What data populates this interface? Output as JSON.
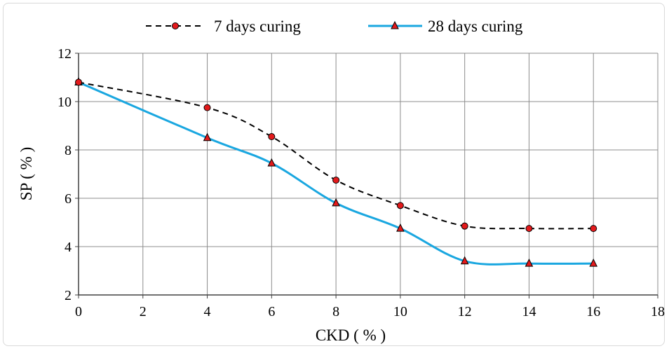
{
  "chart_data": {
    "type": "line",
    "xlabel": "CKD ( % )",
    "ylabel": "SP ( % )",
    "xlim": [
      0,
      18
    ],
    "ylim": [
      2,
      12
    ],
    "xticks": [
      "0",
      "2",
      "4",
      "6",
      "8",
      "10",
      "12",
      "14",
      "16",
      "18"
    ],
    "yticks": [
      "2",
      "4",
      "6",
      "8",
      "10",
      "12"
    ],
    "grid": true,
    "legend_position": "top",
    "series": [
      {
        "name": "7 days curing",
        "color": "#000000",
        "line_style": "dashed",
        "marker": "circle",
        "marker_color": "#e31a1c",
        "x": [
          0,
          4,
          6,
          8,
          10,
          12,
          14,
          16
        ],
        "y": [
          10.8,
          9.75,
          8.55,
          6.75,
          5.7,
          4.85,
          4.75,
          4.75
        ]
      },
      {
        "name": "28 days curing",
        "color": "#1aa7e0",
        "line_style": "solid",
        "marker": "triangle",
        "marker_color": "#e31a1c",
        "x": [
          0,
          4,
          6,
          8,
          10,
          12,
          14,
          16
        ],
        "y": [
          10.8,
          8.5,
          7.45,
          5.8,
          4.75,
          3.4,
          3.3,
          3.3
        ]
      }
    ]
  }
}
